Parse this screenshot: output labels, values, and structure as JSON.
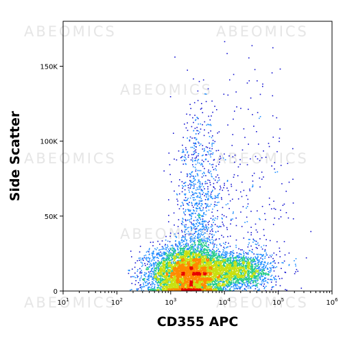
{
  "watermark": "ABEOMICS",
  "chart_data": {
    "type": "scatter",
    "title": "",
    "xlabel": "CD355 APC",
    "ylabel": "Side Scatter",
    "x_scale": "log",
    "xlim": [
      10,
      1000000
    ],
    "ylim": [
      0,
      180000
    ],
    "x_ticks": [
      {
        "value": 10,
        "base": "10",
        "exp": "1"
      },
      {
        "value": 100,
        "base": "10",
        "exp": "2"
      },
      {
        "value": 1000,
        "base": "10",
        "exp": "3"
      },
      {
        "value": 10000,
        "base": "10",
        "exp": "4"
      },
      {
        "value": 100000,
        "base": "10",
        "exp": "5"
      },
      {
        "value": 1000000,
        "base": "10",
        "exp": "6"
      }
    ],
    "y_ticks": [
      {
        "value": 0,
        "label": "0"
      },
      {
        "value": 50000,
        "label": "50K"
      },
      {
        "value": 100000,
        "label": "100K"
      },
      {
        "value": 150000,
        "label": "150K"
      }
    ],
    "density_colors": [
      "#1010d0",
      "#1a8cff",
      "#22cc88",
      "#c8e010",
      "#ff8a00",
      "#e80000"
    ],
    "populations": [
      {
        "x_log10_center": 3.3,
        "y_center": 12000,
        "x_log10_spread": 0.35,
        "y_spread": 9000,
        "weight": 0.62
      },
      {
        "x_log10_center": 4.2,
        "y_center": 14000,
        "x_log10_spread": 0.35,
        "y_spread": 6000,
        "weight": 0.22
      },
      {
        "x_log10_center": 3.5,
        "y_center": 45000,
        "x_log10_spread": 0.2,
        "y_spread": 35000,
        "weight": 0.12
      },
      {
        "x_log10_center": 4.3,
        "y_center": 60000,
        "x_log10_spread": 0.5,
        "y_spread": 45000,
        "weight": 0.04
      }
    ],
    "total_events": 9000
  }
}
